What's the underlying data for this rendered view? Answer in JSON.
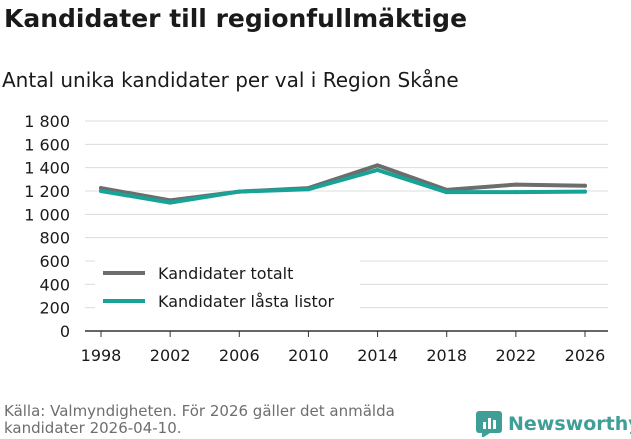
{
  "header": {
    "title": "Kandidater till regionfullmäktige",
    "subtitle": "Antal unika kandidater per val i Region Skåne"
  },
  "footer": {
    "source": "Källa: Valmyndigheten. För 2026 gäller det anmälda kandidater 2026-04-10.",
    "brand": "Newsworthy",
    "brand_color": "#3f9e95"
  },
  "chart_data": {
    "type": "line",
    "title": "Antal unika kandidater per val i Region Skåne",
    "xlabel": "",
    "ylabel": "",
    "x": [
      1998,
      2002,
      2006,
      2010,
      2014,
      2018,
      2022,
      2026
    ],
    "x_tick_labels": [
      "1998",
      "2002",
      "2006",
      "2010",
      "2014",
      "2018",
      "2022",
      "2026"
    ],
    "y_ticks": [
      0,
      200,
      400,
      600,
      800,
      1000,
      1200,
      1400,
      1600,
      1800
    ],
    "y_tick_labels": [
      "0",
      "200",
      "400",
      "600",
      "800",
      "1 000",
      "1 200",
      "1 400",
      "1 600",
      "1 800"
    ],
    "ylim": [
      0,
      1800
    ],
    "grid": true,
    "legend_position": "bottom-left",
    "series": [
      {
        "name": "Kandidater totalt",
        "color": "#6d6d6d",
        "values": [
          1225,
          1120,
          1195,
          1225,
          1420,
          1210,
          1255,
          1245
        ]
      },
      {
        "name": "Kandidater låsta listor",
        "color": "#17a398",
        "values": [
          1200,
          1100,
          1195,
          1215,
          1380,
          1190,
          1190,
          1195
        ]
      }
    ]
  }
}
